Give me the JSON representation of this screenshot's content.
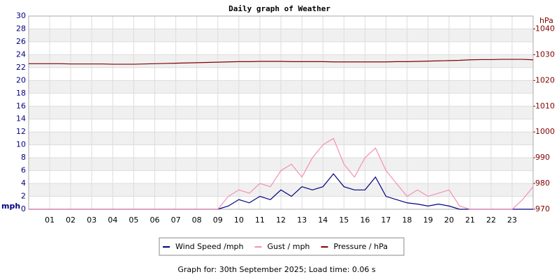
{
  "chart_data": {
    "type": "line",
    "title": "Daily graph of Weather",
    "y_label": "mph",
    "y2_label": "hPa",
    "footer": "Graph for: 30th September 2025; Load time: 0.06 s",
    "x": [
      0,
      0.5,
      1,
      1.5,
      2,
      2.5,
      3,
      3.5,
      4,
      4.5,
      5,
      5.5,
      6,
      6.5,
      7,
      7.5,
      8,
      8.5,
      9,
      9.5,
      10,
      10.5,
      11,
      11.5,
      12,
      12.5,
      13,
      13.5,
      14,
      14.5,
      15,
      15.5,
      16,
      16.5,
      17,
      17.5,
      18,
      18.5,
      19,
      19.5,
      20,
      20.5,
      21,
      21.5,
      22,
      22.5,
      23,
      23.5,
      24
    ],
    "xlim": [
      0,
      24
    ],
    "xticks": [
      {
        "value": 1,
        "label": "01"
      },
      {
        "value": 2,
        "label": "02"
      },
      {
        "value": 3,
        "label": "03"
      },
      {
        "value": 4,
        "label": "04"
      },
      {
        "value": 5,
        "label": "05"
      },
      {
        "value": 6,
        "label": "06"
      },
      {
        "value": 7,
        "label": "07"
      },
      {
        "value": 8,
        "label": "08"
      },
      {
        "value": 9,
        "label": "09"
      },
      {
        "value": 10,
        "label": "10"
      },
      {
        "value": 11,
        "label": "11"
      },
      {
        "value": 12,
        "label": "12"
      },
      {
        "value": 13,
        "label": "13"
      },
      {
        "value": 14,
        "label": "14"
      },
      {
        "value": 15,
        "label": "15"
      },
      {
        "value": 16,
        "label": "16"
      },
      {
        "value": 17,
        "label": "17"
      },
      {
        "value": 18,
        "label": "18"
      },
      {
        "value": 19,
        "label": "19"
      },
      {
        "value": 20,
        "label": "20"
      },
      {
        "value": 21,
        "label": "21"
      },
      {
        "value": 22,
        "label": "22"
      },
      {
        "value": 23,
        "label": "23"
      }
    ],
    "ylim": [
      0,
      30
    ],
    "yticks": [
      0,
      2,
      4,
      6,
      8,
      10,
      12,
      14,
      16,
      18,
      20,
      22,
      24,
      26,
      28,
      30
    ],
    "y2lim": [
      970,
      1045
    ],
    "y2ticks": [
      970,
      980,
      990,
      1000,
      1010,
      1020,
      1030,
      1040
    ],
    "grid": true,
    "legend": "bottom",
    "series": [
      {
        "name": "Wind Speed /mph",
        "color": "#000080",
        "values": [
          0,
          0,
          0,
          0,
          0,
          0,
          0,
          0,
          0,
          0,
          0,
          0,
          0,
          0,
          0,
          0,
          0,
          0,
          0,
          0.5,
          1.5,
          1,
          2,
          1.5,
          3,
          2,
          3.5,
          3,
          3.5,
          5.5,
          3.5,
          3,
          3,
          5,
          2,
          1.5,
          1,
          0.8,
          0.5,
          0.8,
          0.5,
          0,
          0,
          0,
          0,
          0,
          0,
          0,
          0
        ]
      },
      {
        "name": "Gust / mph",
        "color": "#f48fb1",
        "values": [
          0,
          0,
          0,
          0,
          0,
          0,
          0,
          0,
          0,
          0,
          0,
          0,
          0,
          0,
          0,
          0,
          0,
          0,
          0,
          2,
          3,
          2.5,
          4,
          3.5,
          6,
          7,
          5,
          8,
          10,
          11,
          7,
          5,
          8,
          9.5,
          6,
          4,
          2,
          3,
          2,
          2.5,
          3,
          0.5,
          0,
          0,
          0,
          0,
          0,
          1.5,
          3.5
        ]
      },
      {
        "name": "Pressure / hPa",
        "color": "#800000",
        "axis": "y2",
        "values": [
          1026.5,
          1026.5,
          1026.5,
          1026.5,
          1026.4,
          1026.4,
          1026.4,
          1026.4,
          1026.3,
          1026.3,
          1026.3,
          1026.4,
          1026.5,
          1026.6,
          1026.7,
          1026.8,
          1026.9,
          1027.0,
          1027.1,
          1027.2,
          1027.3,
          1027.3,
          1027.4,
          1027.4,
          1027.4,
          1027.3,
          1027.3,
          1027.3,
          1027.3,
          1027.2,
          1027.2,
          1027.2,
          1027.2,
          1027.2,
          1027.2,
          1027.3,
          1027.3,
          1027.4,
          1027.5,
          1027.6,
          1027.7,
          1027.8,
          1028.0,
          1028.1,
          1028.1,
          1028.2,
          1028.2,
          1028.2,
          1028.0
        ]
      }
    ]
  }
}
